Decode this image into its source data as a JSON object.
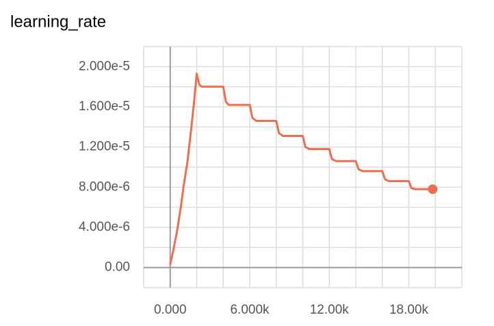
{
  "chart_data": {
    "type": "line",
    "title": "learning_rate",
    "x": [
      0,
      200,
      500,
      800,
      1000,
      1300,
      1600,
      1800,
      2000,
      2200,
      2400,
      4000,
      4200,
      4400,
      6000,
      6200,
      6500,
      8000,
      8200,
      8500,
      10000,
      10200,
      10500,
      12000,
      12200,
      12500,
      14000,
      14200,
      14500,
      16000,
      16200,
      16500,
      18000,
      18200,
      18500,
      19800
    ],
    "series": [
      {
        "name": "learning_rate",
        "color": "#ea7050",
        "values": [
          3e-07,
          1.5e-06,
          3.5e-06,
          6e-06,
          8e-06,
          1.05e-05,
          1.4e-05,
          1.65e-05,
          1.93e-05,
          1.82e-05,
          1.8e-05,
          1.8e-05,
          1.65e-05,
          1.62e-05,
          1.62e-05,
          1.49e-05,
          1.46e-05,
          1.46e-05,
          1.34e-05,
          1.31e-05,
          1.31e-05,
          1.2e-05,
          1.18e-05,
          1.18e-05,
          1.08e-05,
          1.06e-05,
          1.06e-05,
          9.8e-06,
          9.6e-06,
          9.6e-06,
          8.8e-06,
          8.6e-06,
          8.6e-06,
          7.9e-06,
          7.8e-06,
          7.8e-06
        ]
      }
    ],
    "xlim": [
      -2000,
      22000
    ],
    "xticks": [
      {
        "value": 0,
        "label": "0.000"
      },
      {
        "value": 6000,
        "label": "6.000k"
      },
      {
        "value": 12000,
        "label": "12.00k"
      },
      {
        "value": 18000,
        "label": "18.00k"
      }
    ],
    "xgrid": [
      -2000,
      0,
      2000,
      4000,
      6000,
      8000,
      10000,
      12000,
      14000,
      16000,
      18000,
      20000,
      22000
    ],
    "ylim": [
      -2e-06,
      2.2e-05
    ],
    "yticks": [
      {
        "value": 0,
        "label": "0.00"
      },
      {
        "value": 4e-06,
        "label": "4.000e-6"
      },
      {
        "value": 8e-06,
        "label": "8.000e-6"
      },
      {
        "value": 1.2e-05,
        "label": "1.200e-5"
      },
      {
        "value": 1.6e-05,
        "label": "1.600e-5"
      },
      {
        "value": 2e-05,
        "label": "2.000e-5"
      }
    ],
    "ygrid": [
      -2e-06,
      0,
      2e-06,
      4e-06,
      6e-06,
      8e-06,
      1e-05,
      1.2e-05,
      1.4e-05,
      1.6e-05,
      1.8e-05,
      2e-05,
      2.2e-05
    ],
    "grid": true
  }
}
